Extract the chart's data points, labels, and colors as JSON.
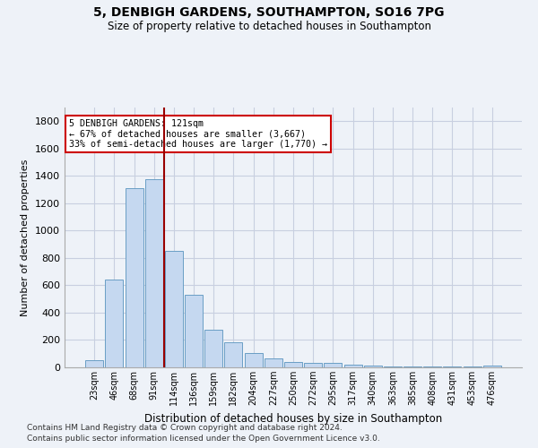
{
  "title1": "5, DENBIGH GARDENS, SOUTHAMPTON, SO16 7PG",
  "title2": "Size of property relative to detached houses in Southampton",
  "xlabel": "Distribution of detached houses by size in Southampton",
  "ylabel": "Number of detached properties",
  "categories": [
    "23sqm",
    "46sqm",
    "68sqm",
    "91sqm",
    "114sqm",
    "136sqm",
    "159sqm",
    "182sqm",
    "204sqm",
    "227sqm",
    "250sqm",
    "272sqm",
    "295sqm",
    "317sqm",
    "340sqm",
    "363sqm",
    "385sqm",
    "408sqm",
    "431sqm",
    "453sqm",
    "476sqm"
  ],
  "values": [
    50,
    640,
    1310,
    1375,
    850,
    530,
    275,
    185,
    105,
    65,
    40,
    35,
    30,
    20,
    10,
    5,
    5,
    5,
    5,
    5,
    10
  ],
  "bar_color": "#c5d8f0",
  "bar_edge_color": "#6a9ec5",
  "grid_color": "#c8cfe0",
  "vline_color": "#990000",
  "annotation_text": "5 DENBIGH GARDENS: 121sqm\n← 67% of detached houses are smaller (3,667)\n33% of semi-detached houses are larger (1,770) →",
  "annotation_box_color": "#ffffff",
  "annotation_box_edge": "#cc0000",
  "ylim": [
    0,
    1900
  ],
  "yticks": [
    0,
    200,
    400,
    600,
    800,
    1000,
    1200,
    1400,
    1600,
    1800
  ],
  "footer1": "Contains HM Land Registry data © Crown copyright and database right 2024.",
  "footer2": "Contains public sector information licensed under the Open Government Licence v3.0.",
  "bg_color": "#eef2f8"
}
